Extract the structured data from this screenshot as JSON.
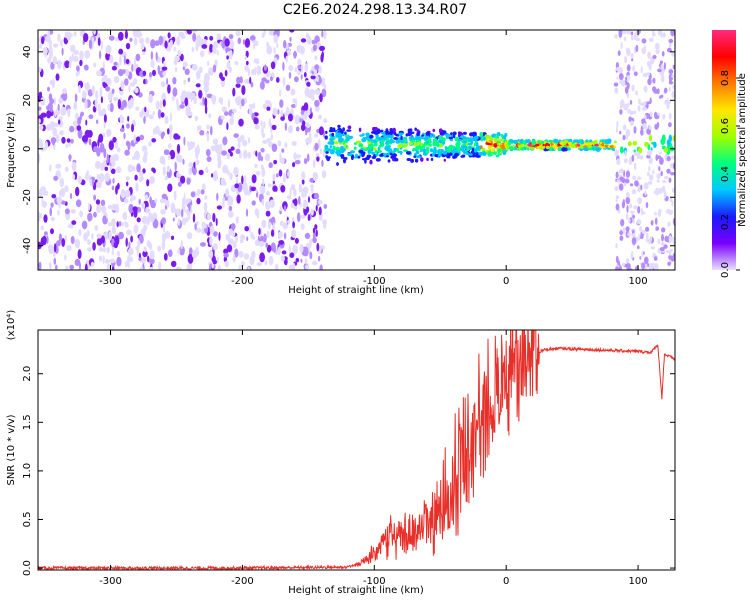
{
  "title": "C2E6.2024.298.13.34.R07",
  "chart_data": [
    {
      "type": "heatmap",
      "xlabel": "Height of straight line (km)",
      "ylabel": "Frequency (Hz)",
      "xlim": [
        -355,
        128
      ],
      "ylim": [
        -50,
        49
      ],
      "x_ticks": [
        -300,
        -200,
        -100,
        0,
        100
      ],
      "y_ticks": [
        -40,
        -20,
        0,
        20,
        40
      ],
      "colorbar": {
        "label": "Normalized spectral amplitude",
        "range": [
          0,
          1
        ],
        "ticks": [
          "0.0",
          "0.2",
          "0.4",
          "0.6",
          "0.8"
        ],
        "colormap": [
          "#e8e0ff",
          "#7a00ff",
          "#1a1aff",
          "#00c8ff",
          "#00ff80",
          "#a0ff00",
          "#ffe600",
          "#ff7a00",
          "#ff0000",
          "#ff2a80"
        ]
      },
      "regions": [
        {
          "x_range": [
            -355,
            -137
          ],
          "description_level": "noise",
          "amplitude_max": 0.2
        },
        {
          "x_range": [
            -137,
            83
          ],
          "center_freq_hz": 1.5,
          "amplitude_max": 1.0
        },
        {
          "x_range": [
            83,
            128
          ],
          "center_freq_hz": 1.5,
          "amplitude_max": 0.6
        }
      ]
    },
    {
      "type": "line",
      "xlabel": "Height of straight line (km)",
      "ylabel": "SNR (10 * v/v)",
      "y_multiplier": "(x10⁴)",
      "xlim": [
        -355,
        128
      ],
      "ylim": [
        -0.02,
        2.45
      ],
      "x_ticks": [
        -300,
        -200,
        -100,
        0,
        100
      ],
      "y_ticks": [
        "0.0",
        "0.5",
        "1.0",
        "1.5",
        "2.0"
      ],
      "series": [
        {
          "color": "#e8302a",
          "x": [
            -355,
            -300,
            -200,
            -120,
            -110,
            -100,
            -90,
            -80,
            -70,
            -60,
            -50,
            -40,
            -30,
            -20,
            -10,
            0,
            10,
            20,
            30,
            40,
            60,
            80,
            100,
            110,
            115,
            118,
            120,
            128
          ],
          "y": [
            0.0,
            0.0,
            0.0,
            0.01,
            0.05,
            0.15,
            0.3,
            0.35,
            0.3,
            0.45,
            0.6,
            0.9,
            1.25,
            1.55,
            1.75,
            1.95,
            2.1,
            2.2,
            2.25,
            2.26,
            2.25,
            2.24,
            2.23,
            2.22,
            2.3,
            1.75,
            2.2,
            2.15
          ]
        }
      ]
    }
  ]
}
